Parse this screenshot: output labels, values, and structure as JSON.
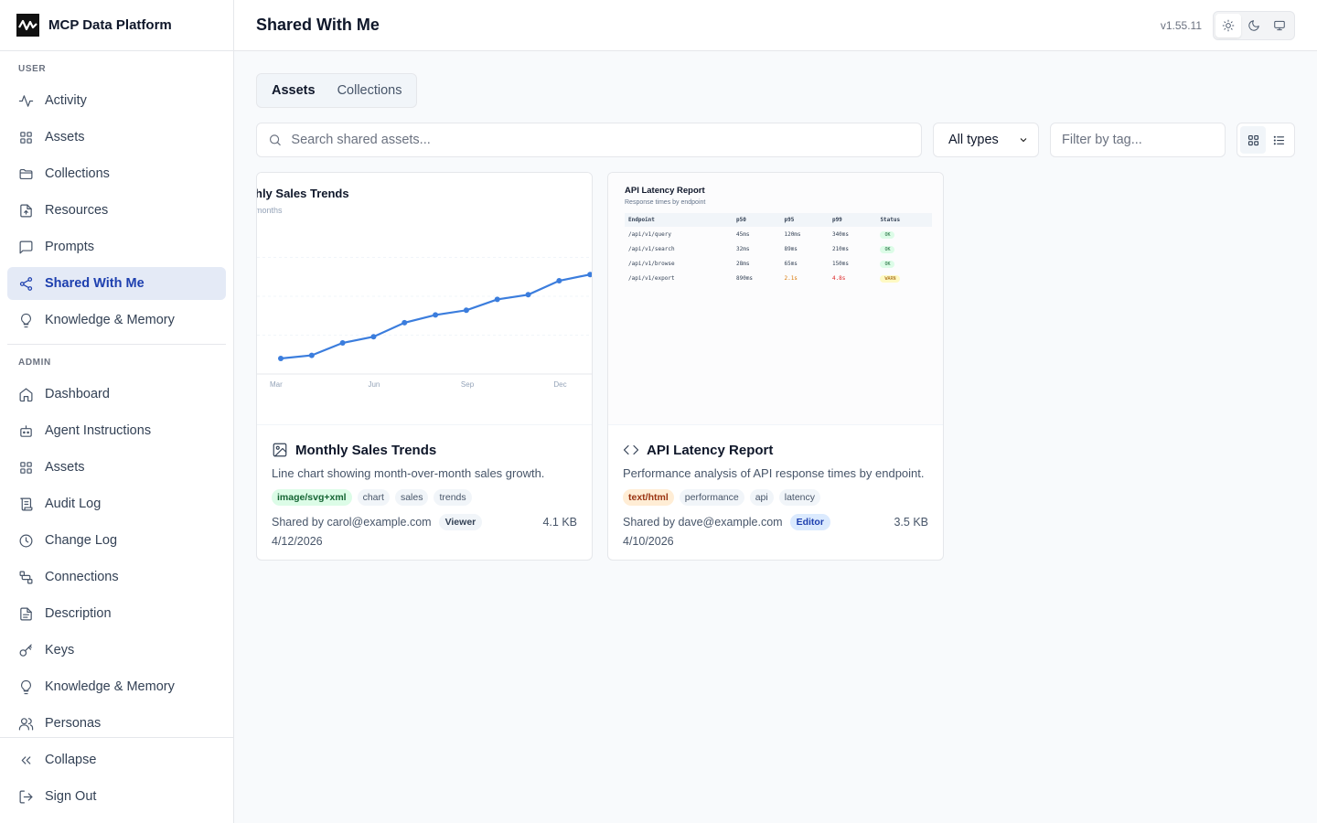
{
  "app": {
    "title": "MCP Data Platform"
  },
  "sidebar": {
    "user_label": "USER",
    "user_items": [
      {
        "label": "Activity",
        "icon": "activity-icon"
      },
      {
        "label": "Assets",
        "icon": "grid-icon"
      },
      {
        "label": "Collections",
        "icon": "folder-icon"
      },
      {
        "label": "Resources",
        "icon": "file-icon"
      },
      {
        "label": "Prompts",
        "icon": "message-icon"
      },
      {
        "label": "Shared With Me",
        "icon": "share-icon",
        "active": true
      },
      {
        "label": "Knowledge & Memory",
        "icon": "lightbulb-icon"
      }
    ],
    "admin_label": "ADMIN",
    "admin_items": [
      {
        "label": "Dashboard",
        "icon": "home-icon"
      },
      {
        "label": "Agent Instructions",
        "icon": "bot-icon"
      },
      {
        "label": "Assets",
        "icon": "grid-icon"
      },
      {
        "label": "Audit Log",
        "icon": "scroll-icon"
      },
      {
        "label": "Change Log",
        "icon": "clock-icon"
      },
      {
        "label": "Connections",
        "icon": "connections-icon"
      },
      {
        "label": "Description",
        "icon": "document-icon"
      },
      {
        "label": "Keys",
        "icon": "key-icon"
      },
      {
        "label": "Knowledge & Memory",
        "icon": "lightbulb-icon"
      },
      {
        "label": "Personas",
        "icon": "users-icon"
      }
    ],
    "footer": {
      "collapse": "Collapse",
      "sign_out": "Sign Out"
    }
  },
  "header": {
    "title": "Shared With Me",
    "version": "v1.55.11",
    "theme_options": [
      "sun-icon",
      "moon-icon",
      "monitor-icon"
    ]
  },
  "tabs": [
    {
      "label": "Assets",
      "active": true
    },
    {
      "label": "Collections",
      "active": false
    }
  ],
  "toolbar": {
    "search_placeholder": "Search shared assets...",
    "type_select": "All types",
    "tag_placeholder": "Filter by tag..."
  },
  "cards": [
    {
      "title": "Monthly Sales Trends",
      "icon": "image-icon",
      "description": "Line chart showing month-over-month sales growth.",
      "mime": "image/svg+xml",
      "tags": [
        "chart",
        "sales",
        "trends"
      ],
      "shared_by": "Shared by carol@example.com",
      "role": "Viewer",
      "size": "4.1 KB",
      "date": "4/12/2026",
      "preview_title": "hly Sales Trends",
      "preview_subtitle": "months"
    },
    {
      "title": "API Latency Report",
      "icon": "code-icon",
      "description": "Performance analysis of API response times by endpoint.",
      "mime": "text/html",
      "tags": [
        "performance",
        "api",
        "latency"
      ],
      "shared_by": "Shared by dave@example.com",
      "role": "Editor",
      "size": "3.5 KB",
      "date": "4/10/2026",
      "preview": {
        "title": "API Latency Report",
        "subtitle": "Response times by endpoint",
        "columns": [
          "Endpoint",
          "p50",
          "p95",
          "p99",
          "Status"
        ],
        "rows": [
          [
            "/api/v1/query",
            "45ms",
            "120ms",
            "340ms",
            "OK"
          ],
          [
            "/api/v1/search",
            "32ms",
            "89ms",
            "210ms",
            "OK"
          ],
          [
            "/api/v1/browse",
            "28ms",
            "65ms",
            "150ms",
            "OK"
          ],
          [
            "/api/v1/export",
            "890ms",
            "2.1s",
            "4.8s",
            "WARN"
          ]
        ]
      }
    }
  ],
  "chart_data": {
    "type": "line",
    "title": "hly Sales Trends",
    "subtitle": "months",
    "x_ticks": [
      "Mar",
      "Jun",
      "Sep",
      "Dec"
    ],
    "series": [
      {
        "values": [
          10,
          12,
          20,
          24,
          33,
          38,
          41,
          48,
          51,
          60,
          64,
          68
        ]
      }
    ],
    "ylim": [
      0,
      100
    ],
    "grid": true,
    "color": "#3b7ddd"
  }
}
